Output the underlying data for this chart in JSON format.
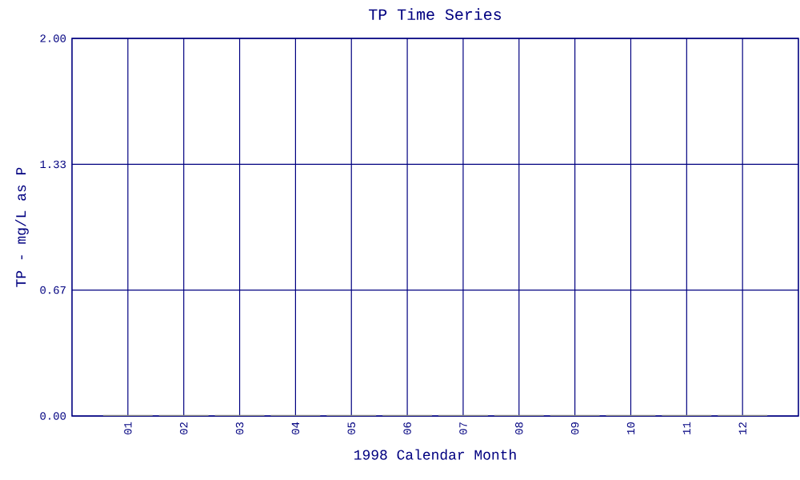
{
  "chart_data": {
    "type": "bar",
    "title": "TP Time Series",
    "xlabel": "1998 Calendar Month",
    "ylabel": "TP - mg/L as P",
    "categories": [
      "01",
      "02",
      "03",
      "04",
      "05",
      "06",
      "07",
      "08",
      "09",
      "10",
      "11",
      "12"
    ],
    "values": [
      0,
      0,
      0,
      0,
      0,
      0,
      0,
      0,
      0,
      0,
      0,
      0
    ],
    "color": "#808080",
    "ylim": [
      0,
      2
    ],
    "yticks": [
      {
        "value": 0,
        "label": "0.00"
      },
      {
        "value": 0.667,
        "label": "0.67"
      },
      {
        "value": 1.333,
        "label": "1.33"
      },
      {
        "value": 2,
        "label": "2.00"
      }
    ],
    "grid": true
  }
}
